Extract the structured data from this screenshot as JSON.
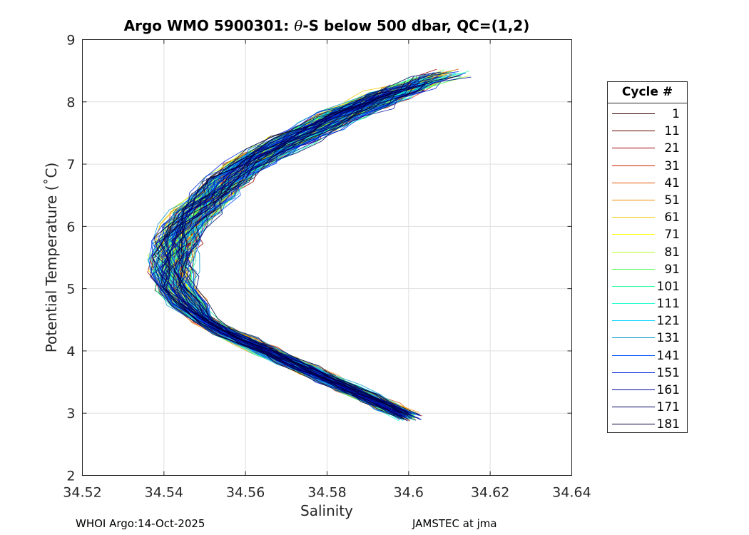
{
  "title": {
    "prefix": "Argo WMO 5900301: ",
    "theta": "θ",
    "suffix": "-S below 500 dbar,  QC=(1,2)"
  },
  "footer": {
    "left": "WHOI Argo:14-Oct-2025",
    "right": "JAMSTEC at jma"
  },
  "chart_data": {
    "type": "line",
    "title": "Argo WMO 5900301: θ-S below 500 dbar,  QC=(1,2)",
    "xlabel": "Salinity",
    "ylabel": "Potential Temperature (˚C)",
    "xlim": [
      34.52,
      34.64
    ],
    "ylim": [
      2,
      9
    ],
    "xticks": [
      34.52,
      34.54,
      34.56,
      34.58,
      34.6,
      34.62,
      34.64
    ],
    "xtick_labels": [
      "34.52",
      "34.54",
      "34.56",
      "34.58",
      "34.6",
      "34.62",
      "34.64"
    ],
    "yticks": [
      2,
      3,
      4,
      5,
      6,
      7,
      8,
      9
    ],
    "ytick_labels": [
      "2",
      "3",
      "4",
      "5",
      "6",
      "7",
      "8",
      "9"
    ],
    "grid": true,
    "legend": {
      "title": "Cycle #",
      "placement": "outside-right",
      "entries": [
        {
          "label": "1",
          "color": "#3a0000"
        },
        {
          "label": "11",
          "color": "#660000"
        },
        {
          "label": "21",
          "color": "#990000"
        },
        {
          "label": "31",
          "color": "#cc2200"
        },
        {
          "label": "41",
          "color": "#e05500"
        },
        {
          "label": "51",
          "color": "#f08c00"
        },
        {
          "label": "61",
          "color": "#f0c800"
        },
        {
          "label": "71",
          "color": "#ffff00"
        },
        {
          "label": "81",
          "color": "#b4ff2a"
        },
        {
          "label": "91",
          "color": "#55ff55"
        },
        {
          "label": "101",
          "color": "#2aff9a"
        },
        {
          "label": "111",
          "color": "#2affd4"
        },
        {
          "label": "121",
          "color": "#00d4ff"
        },
        {
          "label": "131",
          "color": "#0094c8"
        },
        {
          "label": "141",
          "color": "#0050ff"
        },
        {
          "label": "151",
          "color": "#0020e0"
        },
        {
          "label": "161",
          "color": "#000aa0"
        },
        {
          "label": "171",
          "color": "#000066"
        },
        {
          "label": "181",
          "color": "#00003a"
        }
      ]
    },
    "mean_profile": {
      "salinity": [
        34.6,
        34.595,
        34.59,
        34.585,
        34.58,
        34.575,
        34.57,
        34.565,
        34.56,
        34.555,
        34.55,
        34.546,
        34.543,
        34.542,
        34.542,
        34.543,
        34.545,
        34.548,
        34.552,
        34.556,
        34.561,
        34.566,
        34.572,
        34.578,
        34.584,
        34.59,
        34.595,
        34.6,
        34.605,
        34.61
      ],
      "temperature": [
        2.95,
        3.1,
        3.25,
        3.4,
        3.55,
        3.7,
        3.85,
        4.0,
        4.15,
        4.3,
        4.5,
        4.75,
        5.0,
        5.25,
        5.5,
        5.75,
        6.0,
        6.25,
        6.5,
        6.75,
        7.0,
        7.2,
        7.4,
        7.6,
        7.8,
        7.95,
        8.1,
        8.22,
        8.35,
        8.45
      ]
    }
  }
}
